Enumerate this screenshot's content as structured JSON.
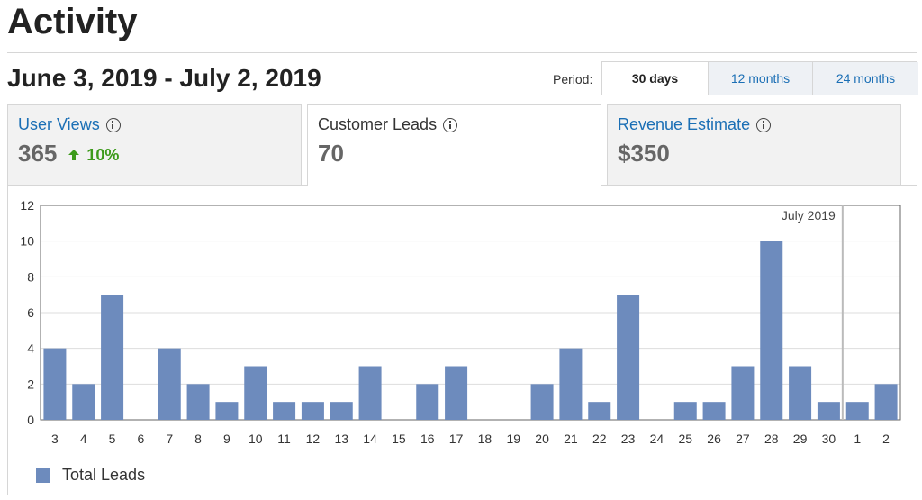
{
  "page": {
    "title": "Activity"
  },
  "date_range": "June 3, 2019 - July 2, 2019",
  "period": {
    "label": "Period:",
    "options": [
      "30 days",
      "12 months",
      "24 months"
    ],
    "selected": "30 days"
  },
  "metrics": [
    {
      "label": "User Views",
      "value": "365",
      "change": "10%",
      "change_direction": "up",
      "selected": false
    },
    {
      "label": "Customer Leads",
      "value": "70",
      "selected": true
    },
    {
      "label": "Revenue Estimate",
      "value": "$350",
      "selected": false
    }
  ],
  "colors": {
    "bar": "#6d8bbd",
    "link": "#1b6fb5",
    "positive": "#3c9a1a"
  },
  "chart_data": {
    "type": "bar",
    "categories": [
      "3",
      "4",
      "5",
      "6",
      "7",
      "8",
      "9",
      "10",
      "11",
      "12",
      "13",
      "14",
      "15",
      "16",
      "17",
      "18",
      "19",
      "20",
      "21",
      "22",
      "23",
      "24",
      "25",
      "26",
      "27",
      "28",
      "29",
      "30",
      "1",
      "2"
    ],
    "series": [
      {
        "name": "Total Leads",
        "values": [
          4,
          2,
          7,
          0,
          4,
          2,
          1,
          3,
          1,
          1,
          1,
          3,
          0,
          2,
          3,
          0,
          0,
          2,
          4,
          1,
          7,
          0,
          1,
          1,
          3,
          10,
          3,
          1,
          1,
          2
        ]
      }
    ],
    "ylim": [
      0,
      12
    ],
    "yticks": [
      "0",
      "2",
      "4",
      "6",
      "8",
      "10",
      "12"
    ],
    "grid": true,
    "annotations": [
      {
        "text": "July 2019",
        "at_category": "1"
      }
    ],
    "legend_position": "bottom-left"
  }
}
